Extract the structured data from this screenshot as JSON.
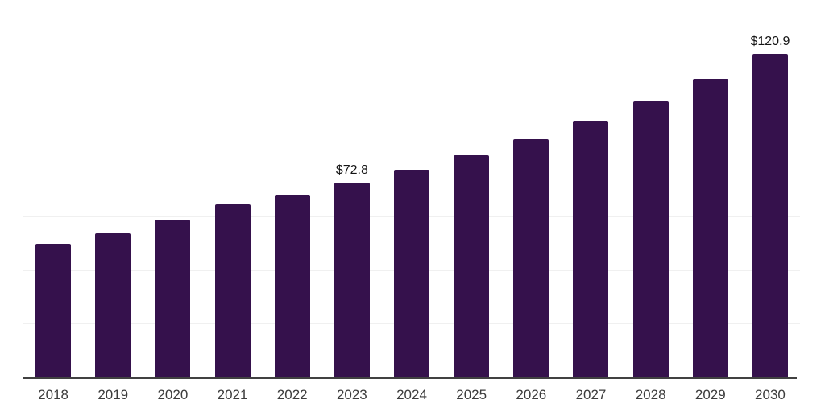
{
  "chart_data": {
    "type": "bar",
    "title": "",
    "categories": [
      "2018",
      "2019",
      "2020",
      "2021",
      "2022",
      "2023",
      "2024",
      "2025",
      "2026",
      "2027",
      "2028",
      "2029",
      "2030"
    ],
    "values": [
      50.2,
      54.0,
      59.0,
      64.9,
      68.5,
      72.8,
      77.7,
      83.1,
      89.0,
      95.8,
      103.1,
      111.5,
      120.9
    ],
    "annotations": [
      {
        "index": 5,
        "text": "$72.8"
      },
      {
        "index": 12,
        "text": "$120.9"
      }
    ],
    "xlabel": "",
    "ylabel": "",
    "ylim": [
      0,
      140
    ],
    "gridline_step": 20,
    "grid": "horizontal",
    "legend_position": "none",
    "colors": {
      "bar": "#35114C",
      "value_label": "#141414",
      "axis_tick_label": "#3c3c3c",
      "gridline": "#f0f0f0",
      "axis_line": "#414141",
      "background": "#ffffff"
    }
  }
}
